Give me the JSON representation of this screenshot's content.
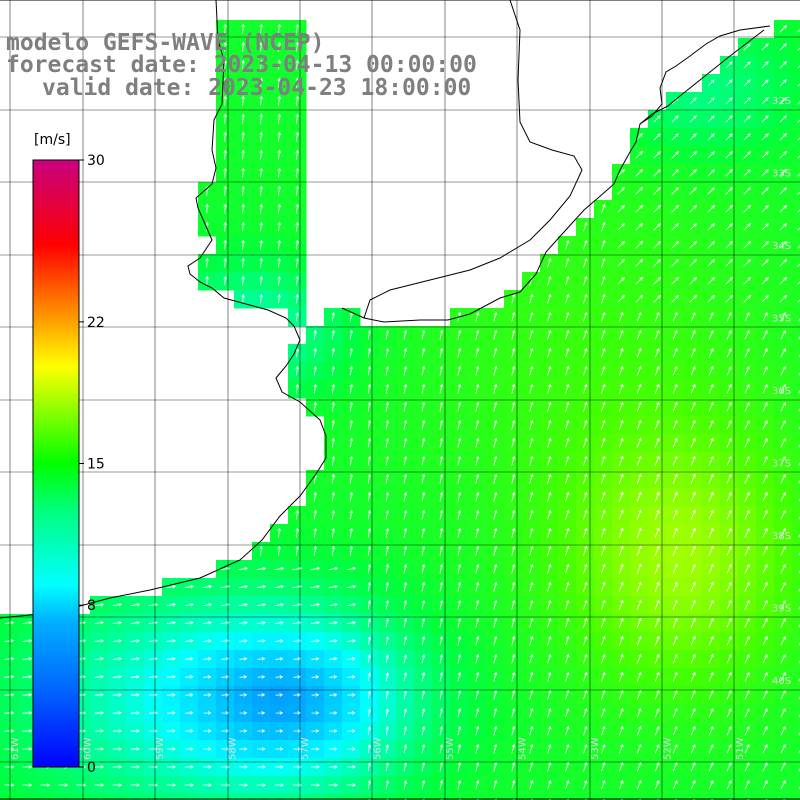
{
  "title": {
    "line1": "modelo GEFS-WAVE (NCEP)",
    "line2": "forecast date: 2023-04-13 00:00:00",
    "line3": "valid date: 2023-04-23 18:00:00"
  },
  "colorbar": {
    "unit": "[m/s]",
    "ticks": [
      "30",
      "22",
      "15",
      "8",
      "0"
    ],
    "tick_values": [
      30,
      22,
      15,
      8,
      0
    ],
    "colors": [
      "#0000ff",
      "#00a0ff",
      "#00ffff",
      "#00ff80",
      "#00ff00",
      "#80ff00",
      "#ffff00",
      "#ff8000",
      "#ff0000",
      "#c80080"
    ]
  },
  "lat_labels": [
    "32S",
    "33S",
    "34S",
    "35S",
    "36S",
    "37S",
    "38S",
    "39S",
    "40S"
  ],
  "lon_labels": [
    "61W",
    "60W",
    "59W",
    "58W",
    "57W",
    "56W",
    "55W",
    "54W",
    "53W",
    "52W",
    "51W"
  ],
  "colors": {
    "land": "#ffffff",
    "coast": "#000000",
    "grid": "#000000",
    "title": "#7f7f7f",
    "arrows": "#ffffff"
  }
}
